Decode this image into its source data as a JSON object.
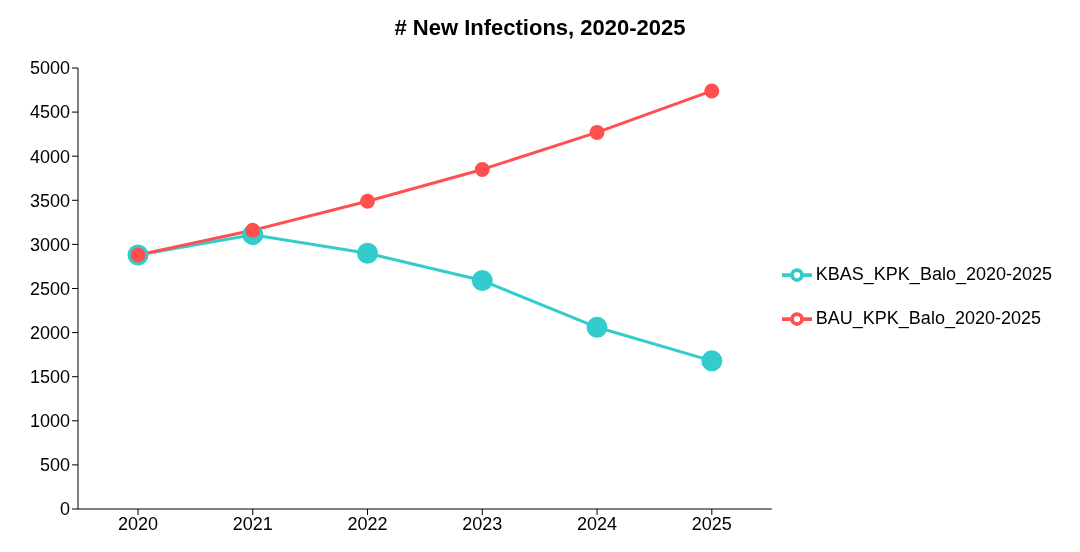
{
  "chart_data": {
    "type": "line",
    "title": "# New Infections, 2020-2025",
    "categories": [
      "2020",
      "2021",
      "2022",
      "2023",
      "2024",
      "2025"
    ],
    "series": [
      {
        "name": "KBAS_KPK_Balo_2020-2025",
        "color": "#33cccc",
        "values": [
          2880,
          3110,
          2900,
          2590,
          2060,
          1680
        ]
      },
      {
        "name": "BAU_KPK_Balo_2020-2025",
        "color": "#ff4f4f",
        "values": [
          2880,
          3160,
          3490,
          3850,
          4270,
          4740
        ]
      }
    ],
    "ylim": [
      0,
      5000
    ],
    "yticks": [
      0,
      500,
      1000,
      1500,
      2000,
      2500,
      3000,
      3500,
      4000,
      4500,
      5000
    ],
    "grid": false,
    "legend": "right",
    "marker": "circle",
    "line_style": "solid"
  }
}
